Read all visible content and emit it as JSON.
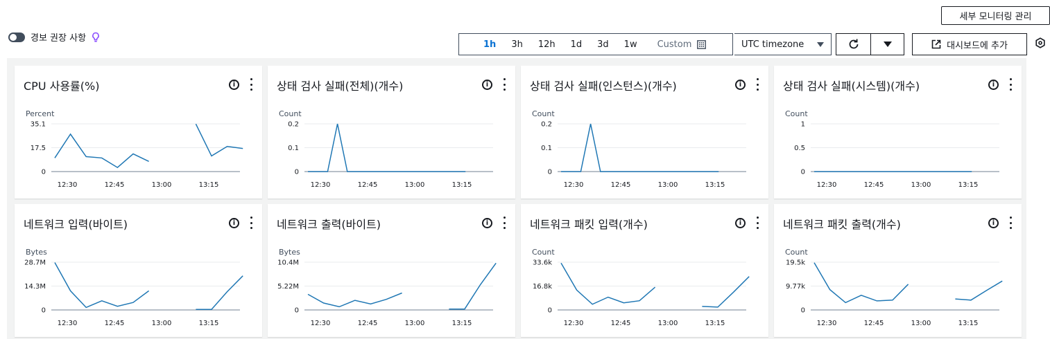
{
  "header": {
    "manage_label": "세부 모니터링 관리",
    "alarm_toggle_label": "경보 권장 사항",
    "time_ranges": [
      "1h",
      "3h",
      "12h",
      "1d",
      "3d",
      "1w"
    ],
    "active_range": "1h",
    "custom_label": "Custom",
    "timezone_label": "UTC timezone",
    "add_dashboard_label": "대시보드에 추가"
  },
  "colors": {
    "line": "#1f77b4",
    "accent": "#0972d3"
  },
  "chart_data": [
    {
      "type": "line",
      "title": "CPU 사용률(%)",
      "ylabel": "Percent",
      "yticks": [
        "35.1",
        "17.5",
        "0"
      ],
      "ylim": [
        0,
        35.1
      ],
      "xticks": [
        "12:30",
        "12:45",
        "13:00",
        "13:15"
      ],
      "series": [
        {
          "segments": [
            [
              10,
              27.5,
              11,
              10,
              3,
              13,
              7.5
            ],
            [
              35,
              11.5,
              18.5,
              17
            ]
          ]
        }
      ]
    },
    {
      "type": "line",
      "title": "상태 검사 실패(전체)(개수)",
      "ylabel": "Count",
      "yticks": [
        "0.2",
        "0.1",
        "0"
      ],
      "ylim": [
        0,
        0.2
      ],
      "xticks": [
        "12:30",
        "12:45",
        "13:00",
        "13:15"
      ],
      "series": [
        {
          "segments": [
            [
              0,
              0,
              0,
              0.2,
              0,
              0,
              0,
              0,
              0,
              0,
              0,
              0,
              0,
              0,
              0,
              0,
              0
            ]
          ]
        }
      ]
    },
    {
      "type": "line",
      "title": "상태 검사 실패(인스턴스)(개수)",
      "ylabel": "Count",
      "yticks": [
        "0.2",
        "0.1",
        "0"
      ],
      "ylim": [
        0,
        0.2
      ],
      "xticks": [
        "12:30",
        "12:45",
        "13:00",
        "13:15"
      ],
      "series": [
        {
          "segments": [
            [
              0,
              0,
              0,
              0.2,
              0,
              0,
              0,
              0,
              0,
              0,
              0,
              0,
              0,
              0,
              0,
              0,
              0
            ]
          ]
        }
      ]
    },
    {
      "type": "line",
      "title": "상태 검사 실패(시스템)(개수)",
      "ylabel": "Count",
      "yticks": [
        "1",
        "0.5",
        "0"
      ],
      "ylim": [
        0,
        1
      ],
      "xticks": [
        "12:30",
        "12:45",
        "13:00",
        "13:15"
      ],
      "series": [
        {
          "segments": [
            [
              0,
              0,
              0,
              0,
              0,
              0,
              0,
              0,
              0,
              0,
              0,
              0,
              0,
              0,
              0,
              0,
              0
            ]
          ]
        }
      ]
    },
    {
      "type": "line",
      "title": "네트워크 입력(바이트)",
      "ylabel": "Bytes",
      "yticks": [
        "28.7M",
        "14.3M",
        "0"
      ],
      "ylim": [
        0,
        28.7
      ],
      "xticks": [
        "12:30",
        "12:45",
        "13:00",
        "13:15"
      ],
      "series": [
        {
          "segments": [
            [
              28.5,
              11.5,
              1.5,
              5.5,
              2.2,
              4.5,
              11.5
            ],
            [
              0.3,
              0.3,
              11,
              20.5
            ]
          ]
        }
      ]
    },
    {
      "type": "line",
      "title": "네트워크 출력(바이트)",
      "ylabel": "Bytes",
      "yticks": [
        "10.4M",
        "5.22M",
        "0"
      ],
      "ylim": [
        0,
        10.4
      ],
      "xticks": [
        "12:30",
        "12:45",
        "13:00",
        "13:15"
      ],
      "series": [
        {
          "segments": [
            [
              3.4,
              1.5,
              0.7,
              2.1,
              1.3,
              2.3,
              3.7
            ],
            [
              0.2,
              0.2,
              5.5,
              10.2
            ]
          ]
        }
      ]
    },
    {
      "type": "line",
      "title": "네트워크 패킷 입력(개수)",
      "ylabel": "Count",
      "yticks": [
        "33.6k",
        "16.8k",
        "0"
      ],
      "ylim": [
        0,
        33.6
      ],
      "xticks": [
        "12:30",
        "12:45",
        "13:00",
        "13:15"
      ],
      "series": [
        {
          "segments": [
            [
              33,
              14,
              4,
              9,
              5,
              6.5,
              16
            ],
            [
              2.5,
              2,
              12.5,
              23.5
            ]
          ]
        }
      ]
    },
    {
      "type": "line",
      "title": "네트워크 패킷 출력(개수)",
      "ylabel": "Count",
      "yticks": [
        "19.5k",
        "9.77k",
        "0"
      ],
      "ylim": [
        0,
        19.5
      ],
      "xticks": [
        "12:30",
        "12:45",
        "13:00",
        "13:15"
      ],
      "series": [
        {
          "segments": [
            [
              19.3,
              8.3,
              3,
              6,
              3.7,
              4,
              10.5
            ],
            [
              4.5,
              4,
              8,
              11.8
            ]
          ]
        }
      ]
    }
  ]
}
